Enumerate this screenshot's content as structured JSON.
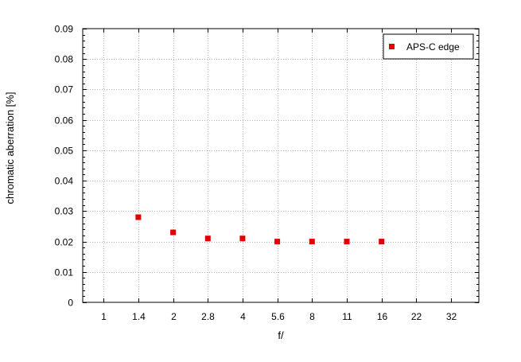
{
  "chart_data": {
    "type": "scatter",
    "xlabel": "f/",
    "ylabel": "chromatic aberration [%]",
    "categories": [
      "1",
      "1.4",
      "2",
      "2.8",
      "4",
      "5.6",
      "8",
      "11",
      "16",
      "22",
      "32"
    ],
    "y_ticks": [
      "0",
      "0.01",
      "0.02",
      "0.03",
      "0.04",
      "0.05",
      "0.06",
      "0.07",
      "0.08",
      "0.09"
    ],
    "ylim": [
      0,
      0.09
    ],
    "grid": true,
    "legend_position": "top-right",
    "series": [
      {
        "name": "APS-C edge",
        "color": "#e00000",
        "marker": "square",
        "points": [
          {
            "x": "1.4",
            "y": 0.028
          },
          {
            "x": "2",
            "y": 0.023
          },
          {
            "x": "2.8",
            "y": 0.021
          },
          {
            "x": "4",
            "y": 0.021
          },
          {
            "x": "5.6",
            "y": 0.02
          },
          {
            "x": "8",
            "y": 0.02
          },
          {
            "x": "11",
            "y": 0.02
          },
          {
            "x": "16",
            "y": 0.02
          }
        ]
      }
    ]
  }
}
